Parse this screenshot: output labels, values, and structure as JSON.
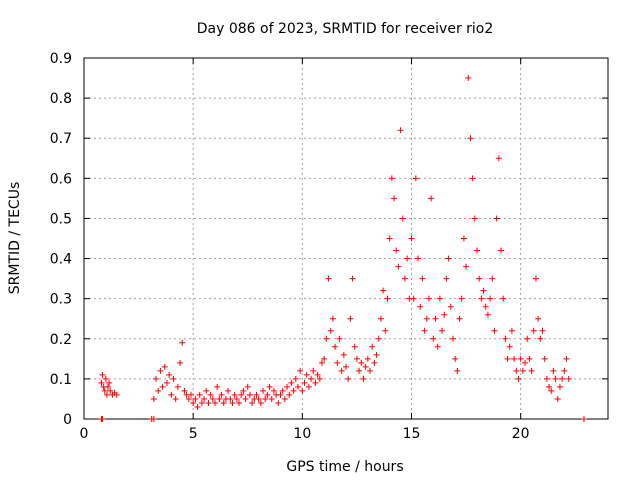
{
  "chart_data": {
    "type": "scatter",
    "title": "Day 086 of 2023, SRMTID for receiver rio2",
    "xlabel": "GPS time / hours",
    "ylabel": "SRMTID / TECUs",
    "xlim": [
      0,
      24
    ],
    "ylim": [
      0,
      0.9
    ],
    "xticks": [
      0,
      5,
      10,
      15,
      20
    ],
    "xtick_labels": [
      "0",
      "5",
      "10",
      "15",
      "20"
    ],
    "yticks": [
      0,
      0.1,
      0.2,
      0.3,
      0.4,
      0.5,
      0.6,
      0.7,
      0.8,
      0.9
    ],
    "ytick_labels": [
      "0",
      "0.1",
      "0.2",
      "0.3",
      "0.4",
      "0.5",
      "0.6",
      "0.7",
      "0.8",
      "0.9"
    ],
    "grid": true,
    "marker": "+",
    "color": "#ff0000",
    "series": [
      {
        "name": "rio2",
        "x": [
          0.8,
          0.85,
          0.9,
          0.95,
          1.0,
          1.05,
          1.1,
          1.15,
          1.2,
          1.3,
          1.4,
          1.5,
          3.2,
          3.3,
          3.4,
          3.5,
          3.6,
          3.7,
          3.8,
          3.9,
          4.0,
          4.1,
          4.2,
          4.3,
          4.4,
          4.5,
          4.6,
          4.7,
          4.8,
          4.9,
          5.0,
          5.1,
          5.2,
          5.3,
          5.4,
          5.5,
          5.6,
          5.7,
          5.8,
          5.9,
          6.0,
          6.1,
          6.2,
          6.3,
          6.4,
          6.5,
          6.6,
          6.7,
          6.8,
          6.9,
          7.0,
          7.1,
          7.2,
          7.3,
          7.4,
          7.5,
          7.6,
          7.7,
          7.8,
          7.9,
          8.0,
          8.1,
          8.2,
          8.3,
          8.4,
          8.5,
          8.6,
          8.7,
          8.8,
          8.9,
          9.0,
          9.1,
          9.2,
          9.3,
          9.4,
          9.5,
          9.6,
          9.7,
          9.8,
          9.9,
          10.0,
          10.1,
          10.2,
          10.3,
          10.4,
          10.5,
          10.6,
          10.7,
          10.8,
          10.9,
          11.0,
          11.1,
          11.2,
          11.3,
          11.4,
          11.5,
          11.6,
          11.7,
          11.8,
          11.9,
          12.0,
          12.1,
          12.2,
          12.3,
          12.4,
          12.5,
          12.6,
          12.7,
          12.8,
          12.9,
          13.0,
          13.1,
          13.2,
          13.3,
          13.4,
          13.5,
          13.6,
          13.7,
          13.8,
          13.9,
          14.0,
          14.1,
          14.2,
          14.3,
          14.4,
          14.5,
          14.6,
          14.7,
          14.8,
          14.9,
          15.0,
          15.1,
          15.2,
          15.3,
          15.4,
          15.5,
          15.6,
          15.7,
          15.8,
          15.9,
          16.0,
          16.1,
          16.2,
          16.3,
          16.4,
          16.5,
          16.6,
          16.7,
          16.8,
          16.9,
          17.0,
          17.1,
          17.2,
          17.3,
          17.4,
          17.5,
          17.6,
          17.7,
          17.8,
          17.9,
          18.0,
          18.1,
          18.2,
          18.3,
          18.4,
          18.5,
          18.6,
          18.7,
          18.8,
          18.9,
          19.0,
          19.1,
          19.2,
          19.3,
          19.4,
          19.5,
          19.6,
          19.7,
          19.8,
          19.9,
          20.0,
          20.1,
          20.2,
          20.3,
          20.4,
          20.5,
          20.6,
          20.7,
          20.8,
          20.9,
          21.0,
          21.1,
          21.2,
          21.3,
          21.4,
          21.5,
          21.6,
          21.7,
          21.8,
          21.9,
          22.0,
          22.1,
          22.2,
          0.8,
          0.85,
          3.1,
          3.2,
          22.9
        ],
        "y": [
          0.09,
          0.11,
          0.08,
          0.07,
          0.1,
          0.06,
          0.08,
          0.09,
          0.07,
          0.06,
          0.065,
          0.06,
          0.05,
          0.1,
          0.07,
          0.12,
          0.08,
          0.13,
          0.09,
          0.11,
          0.06,
          0.1,
          0.05,
          0.08,
          0.14,
          0.19,
          0.07,
          0.06,
          0.05,
          0.06,
          0.04,
          0.05,
          0.03,
          0.06,
          0.04,
          0.05,
          0.07,
          0.04,
          0.06,
          0.05,
          0.04,
          0.08,
          0.05,
          0.06,
          0.04,
          0.05,
          0.07,
          0.05,
          0.04,
          0.06,
          0.05,
          0.04,
          0.06,
          0.07,
          0.05,
          0.08,
          0.06,
          0.04,
          0.05,
          0.06,
          0.05,
          0.04,
          0.07,
          0.05,
          0.06,
          0.08,
          0.05,
          0.07,
          0.06,
          0.04,
          0.06,
          0.07,
          0.05,
          0.08,
          0.06,
          0.09,
          0.07,
          0.1,
          0.08,
          0.12,
          0.07,
          0.09,
          0.11,
          0.08,
          0.1,
          0.12,
          0.09,
          0.11,
          0.1,
          0.14,
          0.15,
          0.2,
          0.35,
          0.22,
          0.25,
          0.18,
          0.14,
          0.2,
          0.12,
          0.16,
          0.13,
          0.1,
          0.25,
          0.35,
          0.18,
          0.15,
          0.12,
          0.14,
          0.1,
          0.13,
          0.15,
          0.12,
          0.18,
          0.14,
          0.16,
          0.2,
          0.25,
          0.32,
          0.22,
          0.3,
          0.45,
          0.6,
          0.55,
          0.42,
          0.38,
          0.72,
          0.5,
          0.35,
          0.4,
          0.3,
          0.45,
          0.3,
          0.6,
          0.4,
          0.28,
          0.35,
          0.22,
          0.25,
          0.3,
          0.55,
          0.2,
          0.25,
          0.18,
          0.3,
          0.22,
          0.26,
          0.35,
          0.4,
          0.28,
          0.2,
          0.15,
          0.12,
          0.25,
          0.3,
          0.45,
          0.38,
          0.85,
          0.7,
          0.6,
          0.5,
          0.42,
          0.35,
          0.3,
          0.32,
          0.28,
          0.26,
          0.3,
          0.35,
          0.22,
          0.5,
          0.65,
          0.42,
          0.3,
          0.2,
          0.15,
          0.18,
          0.22,
          0.15,
          0.12,
          0.1,
          0.15,
          0.12,
          0.14,
          0.2,
          0.15,
          0.12,
          0.22,
          0.35,
          0.25,
          0.2,
          0.22,
          0.15,
          0.1,
          0.08,
          0.07,
          0.12,
          0.1,
          0.05,
          0.08,
          0.1,
          0.12,
          0.15,
          0.1,
          0.0,
          0.0,
          0.0,
          0.0,
          0.0
        ]
      }
    ]
  }
}
